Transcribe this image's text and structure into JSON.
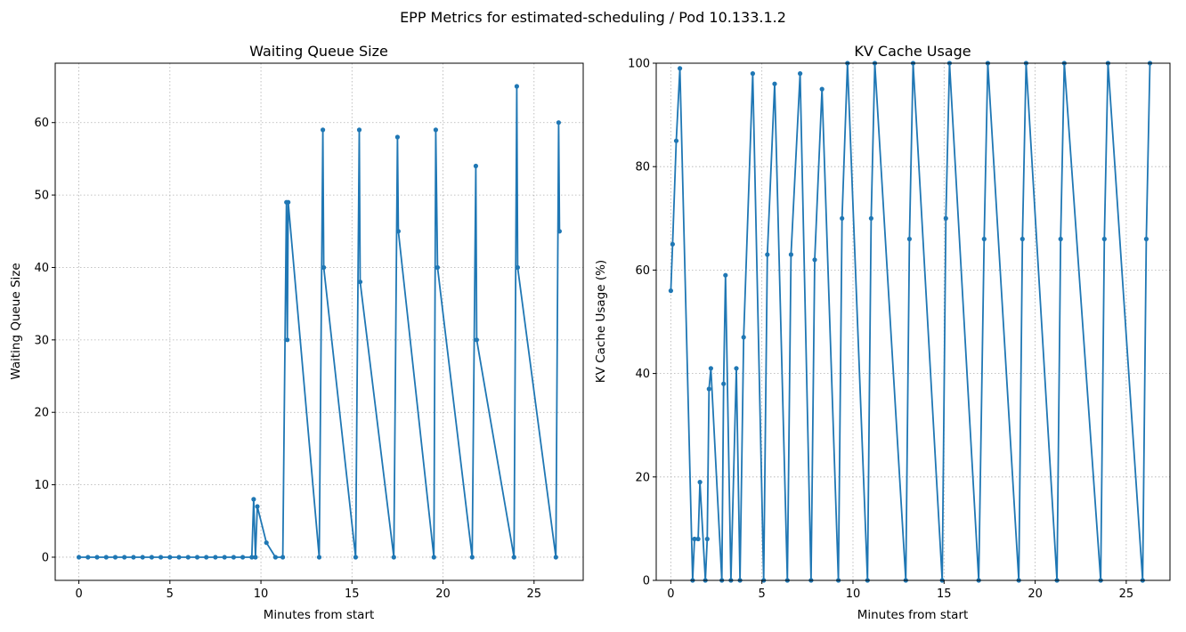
{
  "figure": {
    "suptitle": "EPP Metrics for estimated-scheduling / Pod 10.133.1.2"
  },
  "chart_data": [
    {
      "type": "line",
      "title": "Waiting Queue Size",
      "xlabel": "Minutes from start",
      "ylabel": "Waiting Queue Size",
      "xlim": [
        -1.3,
        27.7
      ],
      "ylim": [
        -3.2,
        68.2
      ],
      "xticks": [
        0,
        5,
        10,
        15,
        20,
        25
      ],
      "yticks": [
        0,
        10,
        20,
        30,
        40,
        50,
        60
      ],
      "grid": true,
      "color": "#1f77b4",
      "marker": "dot",
      "series": [
        {
          "x": [
            0,
            0.5,
            1.0,
            1.5,
            2.0,
            2.5,
            3.0,
            3.5,
            4.0,
            4.5,
            5.0,
            5.5,
            6.0,
            6.5,
            7.0,
            7.5,
            8.0,
            8.5,
            9.0,
            9.5,
            9.6,
            9.7,
            9.8,
            10.3,
            10.8,
            11.2,
            11.4,
            11.45,
            11.5,
            13.2,
            13.4,
            13.45,
            15.2,
            15.4,
            15.45,
            17.3,
            17.5,
            17.55,
            19.5,
            19.6,
            19.7,
            21.6,
            21.8,
            21.85,
            23.9,
            24.05,
            24.1,
            26.2,
            26.35,
            26.4
          ],
          "y": [
            0,
            0,
            0,
            0,
            0,
            0,
            0,
            0,
            0,
            0,
            0,
            0,
            0,
            0,
            0,
            0,
            0,
            0,
            0,
            0,
            8,
            0,
            7,
            2,
            0,
            0,
            49,
            30,
            49,
            0,
            59,
            40,
            0,
            59,
            38,
            0,
            58,
            45,
            0,
            59,
            40,
            0,
            54,
            30,
            0,
            65,
            40,
            0,
            60,
            45
          ]
        }
      ]
    },
    {
      "type": "line",
      "title": "KV Cache Usage",
      "xlabel": "Minutes from start",
      "ylabel": "KV Cache Usage (%)",
      "xlim": [
        -0.8,
        27.4
      ],
      "ylim": [
        0,
        100
      ],
      "xticks": [
        0,
        5,
        10,
        15,
        20,
        25
      ],
      "yticks": [
        0,
        20,
        40,
        60,
        80,
        100
      ],
      "grid": true,
      "color": "#1f77b4",
      "marker": "dot",
      "series": [
        {
          "x": [
            0,
            0.1,
            0.3,
            0.5,
            1.2,
            1.3,
            1.5,
            1.6,
            1.9,
            2.0,
            2.1,
            2.2,
            2.8,
            2.9,
            3.0,
            3.3,
            3.6,
            3.8,
            4.0,
            4.5,
            5.1,
            5.3,
            5.7,
            6.4,
            6.6,
            7.1,
            7.7,
            7.9,
            8.3,
            9.2,
            9.4,
            9.7,
            10.8,
            11.0,
            11.2,
            12.9,
            13.1,
            13.3,
            14.9,
            15.1,
            15.3,
            16.9,
            17.2,
            17.4,
            19.1,
            19.3,
            19.5,
            21.2,
            21.4,
            21.6,
            23.6,
            23.8,
            24.0,
            25.9,
            26.1,
            26.3
          ],
          "y": [
            56,
            65,
            85,
            99,
            0,
            8,
            8,
            19,
            0,
            8,
            37,
            41,
            0,
            38,
            59,
            0,
            41,
            0,
            47,
            98,
            0,
            63,
            96,
            0,
            63,
            98,
            0,
            62,
            95,
            0,
            70,
            100,
            0,
            70,
            100,
            0,
            66,
            100,
            0,
            70,
            100,
            0,
            66,
            100,
            0,
            66,
            100,
            0,
            66,
            100,
            0,
            66,
            100,
            0,
            66,
            100
          ]
        }
      ]
    }
  ]
}
